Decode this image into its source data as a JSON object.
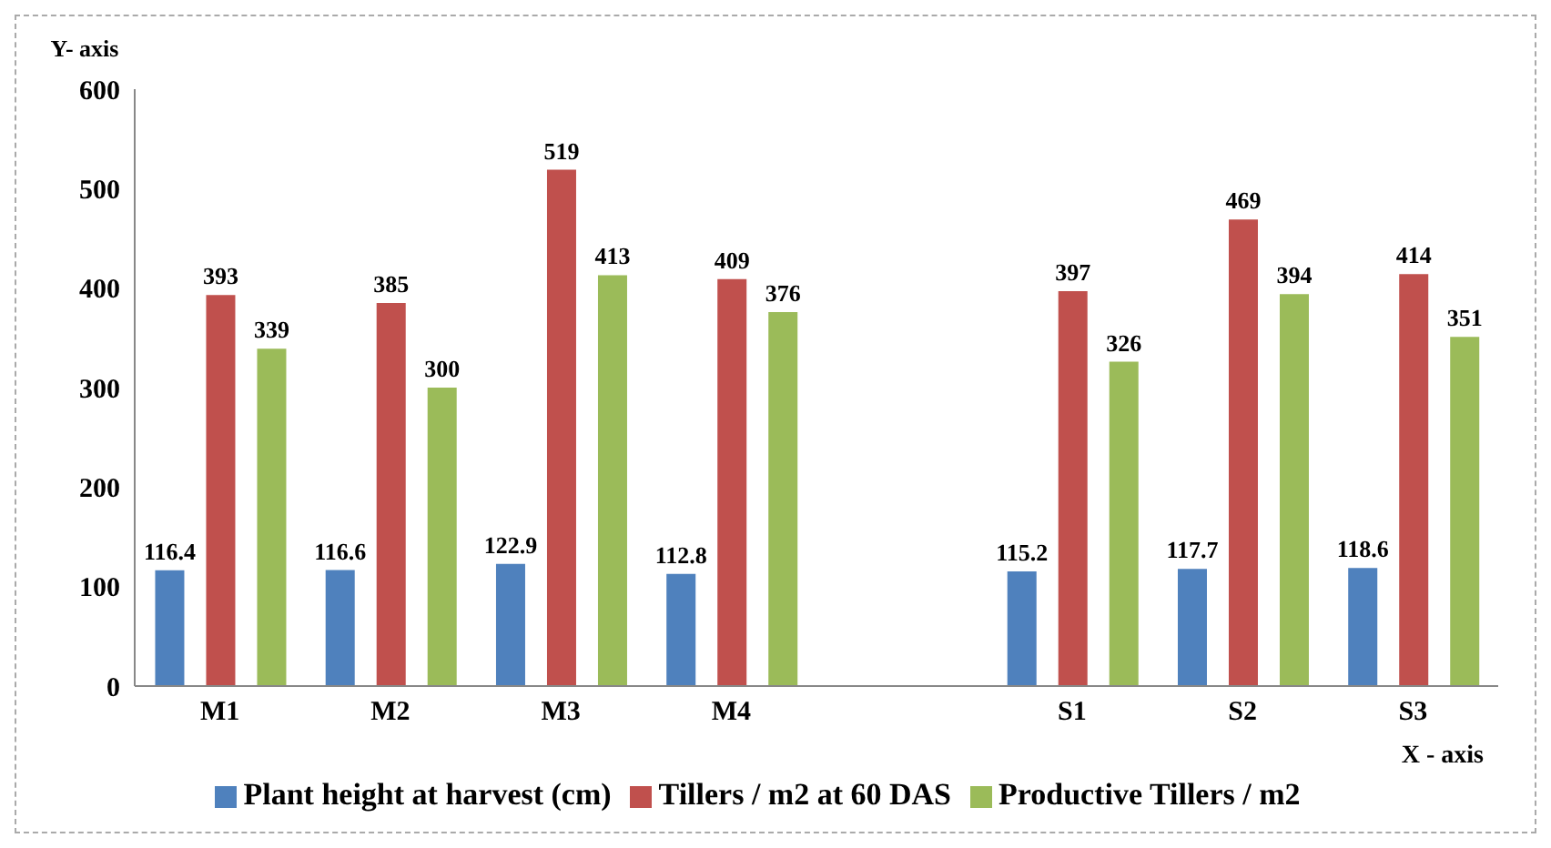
{
  "chart_data": {
    "type": "bar",
    "xlabel": "X - axis",
    "ylabel": "Y- axis",
    "categories": [
      "M1",
      "M2",
      "M3",
      "M4",
      null,
      "S1",
      "S2",
      "S3"
    ],
    "series": [
      {
        "name": "Plant height at harvest (cm)",
        "color": "#4f81bd",
        "values": [
          116.4,
          116.6,
          122.9,
          112.8,
          null,
          115.2,
          117.7,
          118.6
        ]
      },
      {
        "name": "Tillers / m2 at 60 DAS",
        "color": "#c0504d",
        "values": [
          393,
          385,
          519,
          409,
          null,
          397,
          469,
          414
        ]
      },
      {
        "name": "Productive Tillers / m2",
        "color": "#9bbb59",
        "values": [
          339,
          300,
          413,
          376,
          null,
          326,
          394,
          351
        ]
      }
    ],
    "ylim": [
      0,
      600
    ],
    "yticks": [
      0,
      100,
      200,
      300,
      400,
      500,
      600
    ],
    "grid": false,
    "legend": "bottom",
    "data_labels": true
  }
}
